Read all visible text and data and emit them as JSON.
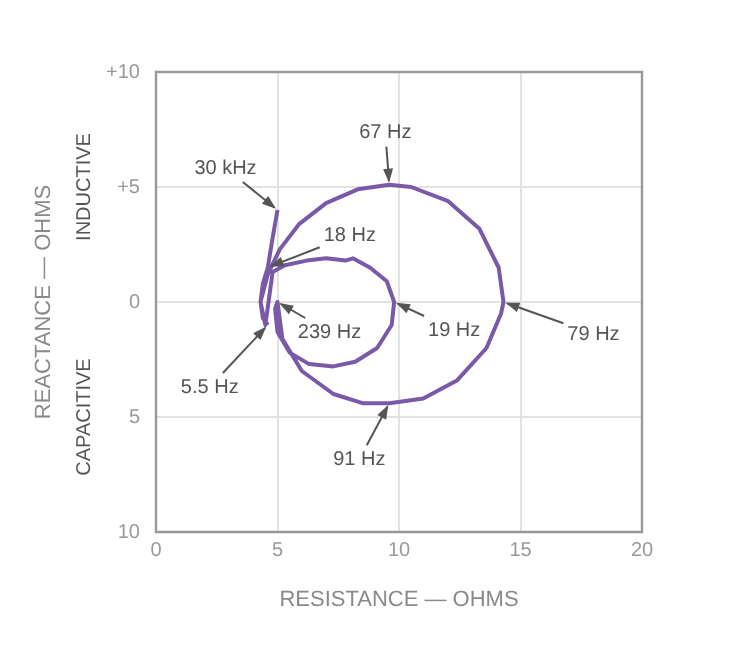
{
  "chart_data": {
    "type": "line",
    "xlabel": "RESISTANCE — OHMS",
    "ylabel": "REACTANCE — OHMS",
    "series": [
      {
        "color": "#7a5aa8",
        "x": [
          5.0,
          4.8,
          4.6,
          4.4,
          4.3,
          4.5,
          4.8,
          5.3,
          6.2,
          7.0,
          7.8,
          8.1,
          8.8,
          9.5,
          9.8,
          9.7,
          9.1,
          8.2,
          7.3,
          6.3,
          5.5,
          5.0,
          4.9,
          5.0,
          5.2,
          6.0,
          7.3,
          8.5,
          9.6,
          11.0,
          12.4,
          13.6,
          14.2,
          14.3,
          14.1,
          13.3,
          12.0,
          10.5,
          9.6,
          8.3,
          7.0,
          5.9,
          5.1,
          4.6,
          4.3,
          4.4,
          4.6
        ],
        "values": [
          4.0,
          2.8,
          1.5,
          0.8,
          0.0,
          -1.0,
          1.3,
          1.6,
          1.8,
          1.9,
          1.8,
          1.9,
          1.5,
          0.9,
          0.0,
          -1.0,
          -2.0,
          -2.6,
          -2.8,
          -2.7,
          -2.2,
          -1.3,
          -0.3,
          0.0,
          -1.6,
          -3.0,
          -4.0,
          -4.4,
          -4.4,
          -4.2,
          -3.4,
          -2.0,
          -0.5,
          0.0,
          1.5,
          3.2,
          4.4,
          5.0,
          5.1,
          4.9,
          4.3,
          3.4,
          2.3,
          1.2,
          0.0,
          -0.7,
          -1.0
        ]
      }
    ],
    "xlim": [
      0,
      20
    ],
    "xticks": [
      0,
      5,
      10,
      15,
      20
    ],
    "ylim": [
      -10,
      10
    ],
    "yticks": [
      {
        "value": -10,
        "label": "10"
      },
      {
        "value": -5,
        "label": "5"
      },
      0,
      {
        "value": 5,
        "label": "+5"
      },
      {
        "value": 10,
        "label": "+10"
      }
    ],
    "grid": true,
    "marker": "none",
    "line_style": "solid",
    "legend": false,
    "annotations": [
      {
        "text": "67 Hz",
        "x": 9.6,
        "y": 5.1
      },
      {
        "text": "30 kHz",
        "x": 5.0,
        "y": 4.0
      },
      {
        "text": "18 Hz",
        "x": 4.6,
        "y": 1.5
      },
      {
        "text": "239 Hz",
        "x": 5.0,
        "y": 0.0
      },
      {
        "text": "19 Hz",
        "x": 9.8,
        "y": 0.0
      },
      {
        "text": "79 Hz",
        "x": 14.3,
        "y": 0.0
      },
      {
        "text": "5.5 Hz",
        "x": 4.6,
        "y": -1.0
      },
      {
        "text": "91 Hz",
        "x": 9.6,
        "y": -4.4
      },
      "INDUCTIVE",
      "CAPACITIVE"
    ]
  }
}
